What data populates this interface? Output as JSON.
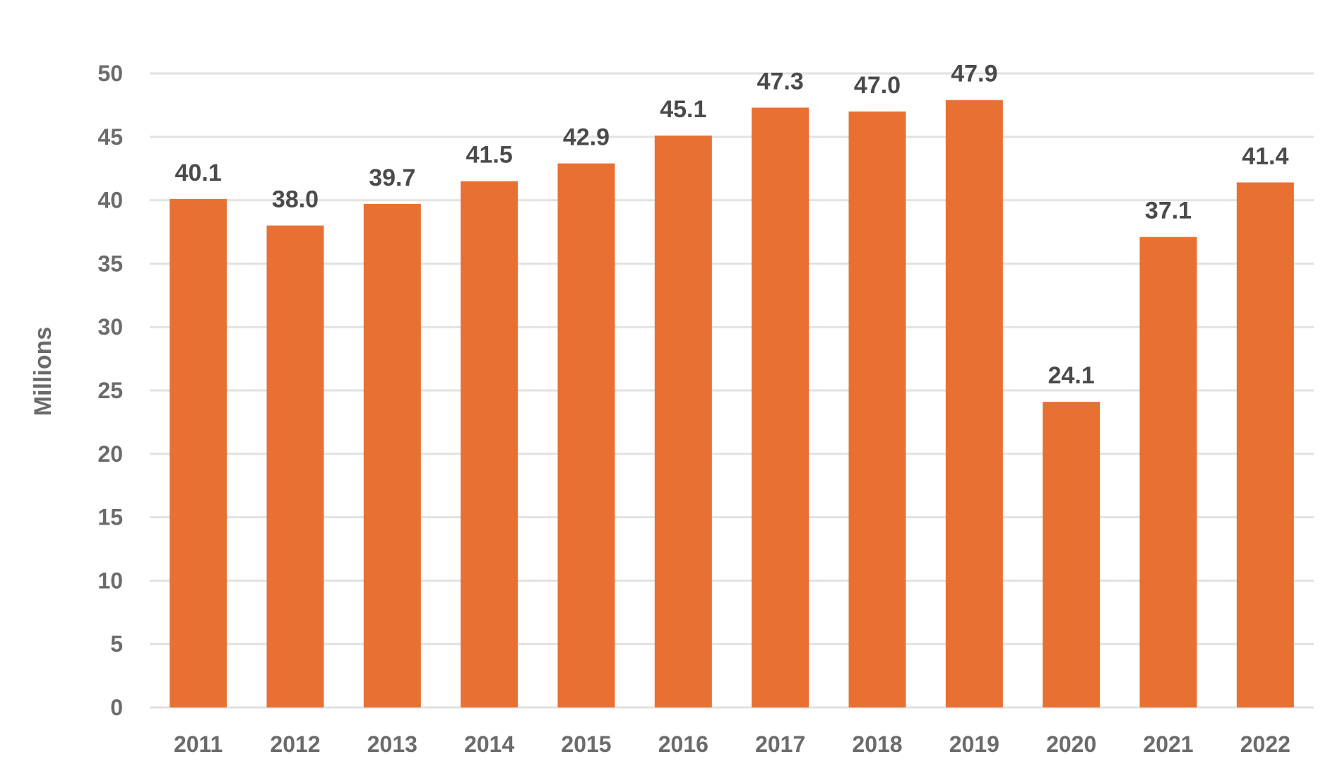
{
  "chart_data": {
    "type": "bar",
    "title": "",
    "xlabel": "",
    "ylabel": "Millions",
    "categories": [
      "2011",
      "2012",
      "2013",
      "2014",
      "2015",
      "2016",
      "2017",
      "2018",
      "2019",
      "2020",
      "2021",
      "2022"
    ],
    "values": [
      40.1,
      38.0,
      39.7,
      41.5,
      42.9,
      45.1,
      47.3,
      47.0,
      47.9,
      24.1,
      37.1,
      41.4
    ],
    "value_labels": [
      "40.1",
      "38.0",
      "39.7",
      "41.5",
      "42.9",
      "45.1",
      "47.3",
      "47.0",
      "47.9",
      "24.1",
      "37.1",
      "41.4"
    ],
    "ylim": [
      0,
      50
    ],
    "yticks": [
      0,
      5,
      10,
      15,
      20,
      25,
      30,
      35,
      40,
      45,
      50
    ],
    "grid": true,
    "legend": "none",
    "colors": {
      "bar": "#E87033",
      "grid": "#E2E2E2",
      "tick_text": "#6B6B6B",
      "data_label_text": "#4A4A4A"
    }
  }
}
